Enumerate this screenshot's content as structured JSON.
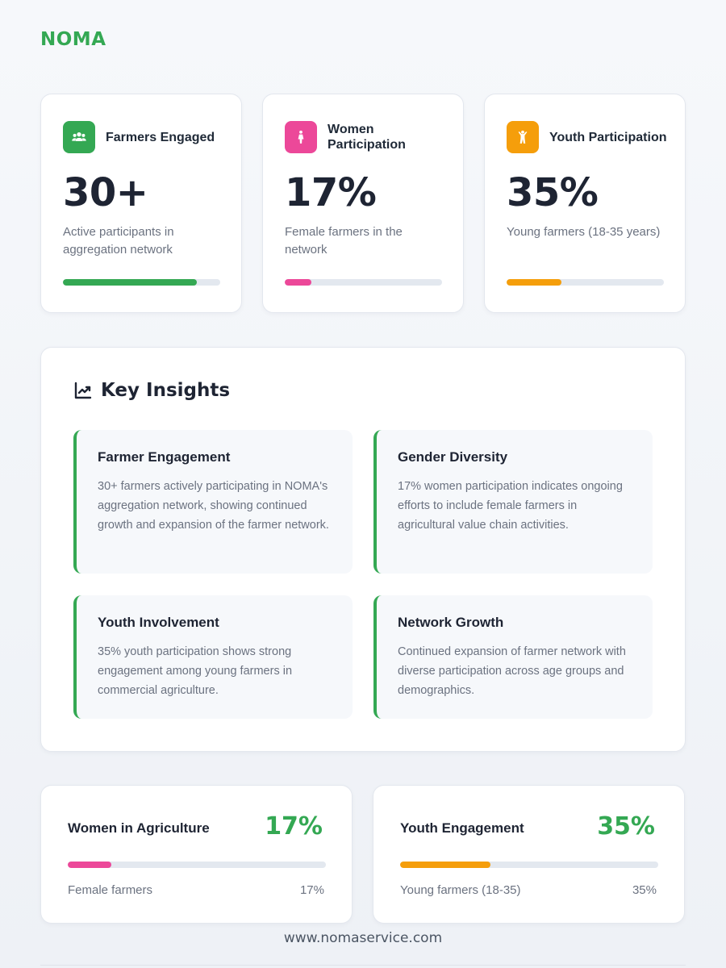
{
  "brand": {
    "logo_text": "NOMA",
    "accent": "#34a853"
  },
  "stats": [
    {
      "icon": "users-icon",
      "label": "Farmers Engaged",
      "value": "30+",
      "description": "Active participants in aggregation network",
      "color": "#34a853",
      "progress": 0.85
    },
    {
      "icon": "female-icon",
      "label": "Women Participation",
      "value": "17%",
      "description": "Female farmers in the network",
      "color": "#ec4899",
      "progress": 0.17
    },
    {
      "icon": "child-icon",
      "label": "Youth Participation",
      "value": "35%",
      "description": "Young farmers (18-35 years)",
      "color": "#f59e0b",
      "progress": 0.35
    }
  ],
  "insights": {
    "icon": "trend-chart-icon",
    "title": "Key Insights",
    "items": [
      {
        "title": "Farmer Engagement",
        "text": "30+ farmers actively participating in NOMA's aggregation network, showing continued growth and expansion of the farmer network."
      },
      {
        "title": "Gender Diversity",
        "text": "17% women participation indicates ongoing efforts to include female farmers in agricultural value chain activities."
      },
      {
        "title": "Youth Involvement",
        "text": "35% youth participation shows strong engagement among young farmers in commercial agriculture."
      },
      {
        "title": "Network Growth",
        "text": "Continued expansion of farmer network with diverse participation across age groups and demographics."
      }
    ]
  },
  "summary": [
    {
      "title": "Women in Agriculture",
      "value": "17%",
      "caption": "Female farmers",
      "percent_label": "17%",
      "color": "#ec4899",
      "progress": 0.17
    },
    {
      "title": "Youth Engagement",
      "value": "35%",
      "caption": "Young farmers (18-35)",
      "percent_label": "35%",
      "color": "#f59e0b",
      "progress": 0.35
    }
  ],
  "footer": {
    "url": "www.nomaservice.com"
  }
}
